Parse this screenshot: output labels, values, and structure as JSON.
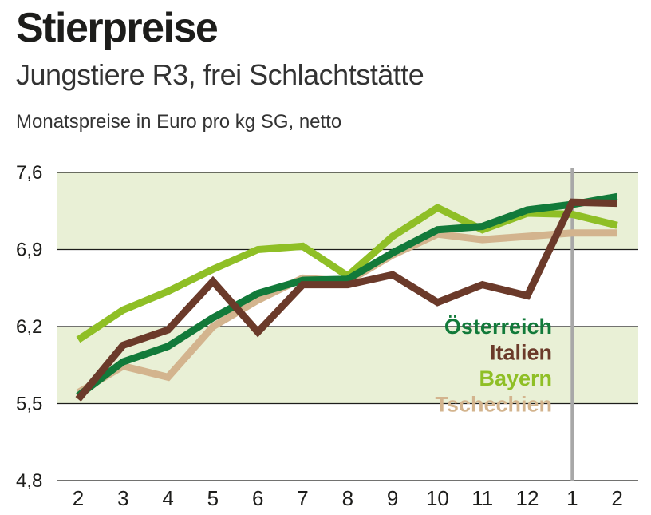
{
  "header": {
    "title": "Stierpreise",
    "subtitle": "Jungstiere R3, frei Schlachtstätte",
    "units": "Monatspreise in Euro pro kg SG, netto"
  },
  "chart_data": {
    "type": "line",
    "title": "Stierpreise",
    "subtitle": "Jungstiere R3, frei Schlachtstätte",
    "ylabel": "Monatspreise in Euro pro kg SG, netto",
    "categories": [
      "2",
      "3",
      "4",
      "5",
      "6",
      "7",
      "8",
      "9",
      "10",
      "11",
      "12",
      "1",
      "2"
    ],
    "ylim": [
      4.8,
      7.6
    ],
    "yticks": [
      {
        "value": 4.8,
        "label": "4,8"
      },
      {
        "value": 5.5,
        "label": "5,5"
      },
      {
        "value": 6.2,
        "label": "6,2"
      },
      {
        "value": 6.9,
        "label": "6,9"
      },
      {
        "value": 7.6,
        "label": "7,6"
      }
    ],
    "bands": [
      [
        5.5,
        6.2
      ],
      [
        6.9,
        7.6
      ]
    ],
    "band_color": "#e9f0d6",
    "divider_category_index": 11,
    "divider_color": "#a8a8a8",
    "series": [
      {
        "name": "Tschechien",
        "color": "#d3b48e",
        "values": [
          5.6,
          5.84,
          5.74,
          6.2,
          6.44,
          6.64,
          6.61,
          6.85,
          7.04,
          6.99,
          7.02,
          7.05,
          7.05
        ]
      },
      {
        "name": "Bayern",
        "color": "#8fbf26",
        "values": [
          6.08,
          6.35,
          6.52,
          6.72,
          6.9,
          6.93,
          6.66,
          7.02,
          7.28,
          7.08,
          7.23,
          7.22,
          7.12
        ]
      },
      {
        "name": "Österreich",
        "color": "#127a3a",
        "values": [
          5.57,
          5.88,
          6.02,
          6.28,
          6.5,
          6.62,
          6.63,
          6.87,
          7.08,
          7.11,
          7.26,
          7.31,
          7.38
        ]
      },
      {
        "name": "Italien",
        "color": "#6b3a2a",
        "values": [
          5.54,
          6.03,
          6.17,
          6.61,
          6.15,
          6.58,
          6.58,
          6.67,
          6.42,
          6.58,
          6.48,
          7.33,
          7.32
        ]
      }
    ],
    "legend": {
      "placement": "right",
      "items": [
        {
          "label": "Österreich",
          "color": "#127a3a"
        },
        {
          "label": "Italien",
          "color": "#6b3a2a"
        },
        {
          "label": "Bayern",
          "color": "#8fbf26"
        },
        {
          "label": "Tschechien",
          "color": "#d3b48e"
        }
      ]
    }
  }
}
